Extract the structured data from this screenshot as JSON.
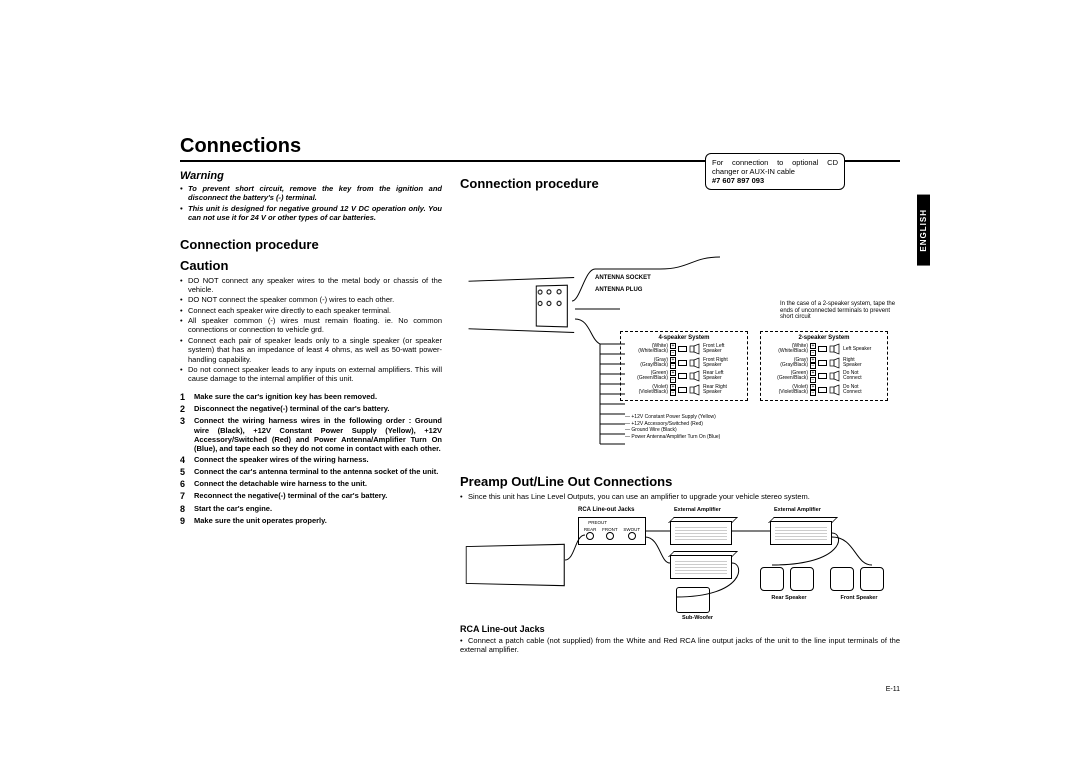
{
  "page": {
    "title": "Connections",
    "language_tab": "ENGLISH",
    "page_number": "E-11"
  },
  "warning": {
    "heading": "Warning",
    "items": [
      "To prevent short circuit, remove the key from the ignition and disconnect the battery's (-) terminal.",
      "This unit is designed for negative ground 12 V DC operation only. You can not use it for 24 V or other types of car batteries."
    ]
  },
  "left_procedure": {
    "heading": "Connection procedure",
    "caution_heading": "Caution",
    "cautions": [
      "DO NOT connect any speaker wires to the metal body or chassis of the vehicle.",
      "DO NOT connect the speaker common (-) wires to each other.",
      "Connect each speaker wire directly to each speaker terminal.",
      "All speaker common (-) wires must remain floating. ie. No common connections or connection to vehicle grd.",
      "Connect each pair of speaker leads only to a single speaker (or speaker system) that has an impedance of least 4 ohms, as well as 50-watt power-handling capability.",
      "Do not connect speaker leads to any inputs on external amplifiers. This will cause damage to the internal amplifier of this unit."
    ],
    "steps": [
      "Make sure the car's ignition key has been removed.",
      "Disconnect the negative(-) terminal of the car's battery.",
      "Connect the wiring harness wires in the following order : Ground wire (Black), +12V Constant Power Supply (Yellow), +12V Accessory/Switched (Red) and Power Antenna/Amplifier Turn On (Blue), and tape each so they do not come in contact with each other.",
      "Connect the speaker wires of the wiring harness.",
      "Connect the car's antenna terminal to the antenna socket of the unit.",
      "Connect the detachable wire harness to the unit.",
      "Reconnect the negative(-) terminal of the car's battery.",
      "Start the car's engine.",
      "Make sure the unit operates properly."
    ]
  },
  "right_procedure": {
    "heading": "Connection procedure",
    "callout": {
      "line1": "For connection to optional CD changer or AUX-IN cable",
      "part": "#7 607 897 093"
    },
    "antenna_socket": "ANTENNA SOCKET",
    "antenna_plug": "ANTENNA PLUG",
    "note_2spk": "In the case of a 2-speaker system, tape the ends of unconnected terminals to prevent short circuit",
    "system4": {
      "title": "4-speaker System",
      "rows": [
        {
          "label": "(White)",
          "pol": "+",
          "out": "Front Left Speaker"
        },
        {
          "label": "(White/Black)",
          "pol": "−",
          "out": ""
        },
        {
          "label": "(Gray)",
          "pol": "+",
          "out": "Front Right Speaker"
        },
        {
          "label": "(Gray/Black)",
          "pol": "−",
          "out": ""
        },
        {
          "label": "(Green)",
          "pol": "+",
          "out": "Rear Left Speaker"
        },
        {
          "label": "(Green/Black)",
          "pol": "−",
          "out": ""
        },
        {
          "label": "(Violet)",
          "pol": "+",
          "out": "Rear Right Speaker"
        },
        {
          "label": "(Violet/Black)",
          "pol": "−",
          "out": ""
        }
      ]
    },
    "system2": {
      "title": "2-speaker System",
      "rows": [
        {
          "label": "(White)",
          "pol": "+",
          "out": "Left Speaker"
        },
        {
          "label": "(White/Black)",
          "pol": "−",
          "out": ""
        },
        {
          "label": "(Gray)",
          "pol": "+",
          "out": "Right Speaker"
        },
        {
          "label": "(Gray/Black)",
          "pol": "−",
          "out": ""
        },
        {
          "label": "(Green)",
          "pol": "+",
          "out": "Do Not Connect"
        },
        {
          "label": "(Green/Black)",
          "pol": "−",
          "out": ""
        },
        {
          "label": "(Violet)",
          "pol": "+",
          "out": "Do Not Connect"
        },
        {
          "label": "(Violet/Black)",
          "pol": "−",
          "out": ""
        }
      ]
    },
    "power_wires": [
      "+12V  Constant Power Supply (Yellow)",
      "+12V  Accessory/Switched (Red)",
      "Ground Wire (Black)",
      "Power Antenna/Amplifier Turn On (Blue)"
    ]
  },
  "preamp": {
    "heading": "Preamp Out/Line Out Connections",
    "intro": "Since this unit has Line Level Outputs, you can use an amplifier to upgrade your vehicle stereo system.",
    "labels": {
      "rca_jacks": "RCA Line-out Jacks",
      "ext_amp": "External Amplifier",
      "ext_amp2": "External Amplifier",
      "sub": "Sub-Woofer",
      "rear": "Rear Speaker",
      "front": "Front Speaker",
      "preout": "PREOUT",
      "rear_col": "REAR",
      "front_col": "FRONT",
      "swout": "SWOUT"
    },
    "rca_section_heading": "RCA Line-out Jacks",
    "rca_body": "Connect a patch cable (not supplied) from the White and Red RCA line output jacks of the unit to the line input terminals of the external amplifier."
  },
  "colors": {
    "text": "#000000",
    "bg": "#ffffff"
  }
}
